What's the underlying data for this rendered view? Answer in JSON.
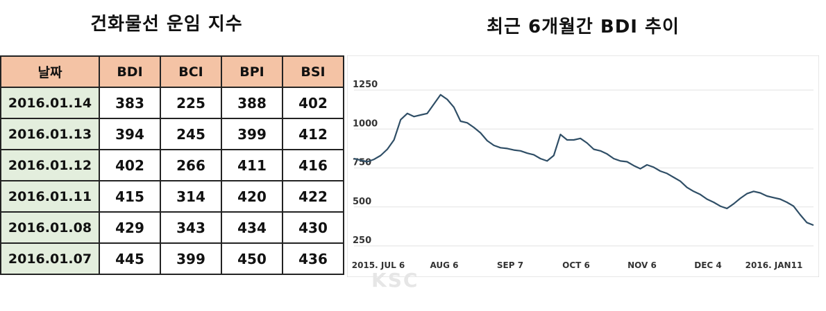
{
  "table_title": "건화물선 운임 지수",
  "chart_title": "최근 6개월간 BDI 추이",
  "table": {
    "headers": [
      "날짜",
      "BDI",
      "BCI",
      "BPI",
      "BSI"
    ],
    "rows": [
      [
        "2016.01.14",
        "383",
        "225",
        "388",
        "402"
      ],
      [
        "2016.01.13",
        "394",
        "245",
        "399",
        "412"
      ],
      [
        "2016.01.12",
        "402",
        "266",
        "411",
        "416"
      ],
      [
        "2016.01.11",
        "415",
        "314",
        "420",
        "422"
      ],
      [
        "2016.01.08",
        "429",
        "343",
        "434",
        "430"
      ],
      [
        "2016.01.07",
        "445",
        "399",
        "450",
        "436"
      ]
    ]
  },
  "watermark": "KSC",
  "colors": {
    "header_bg": "#f4c3a5",
    "date_bg": "#e3eedd",
    "line": "#2f4e66"
  },
  "chart_data": {
    "type": "line",
    "title": "최근 6개월간 BDI 추이",
    "xlabel": "",
    "ylabel": "",
    "ylim": [
      250,
      1250
    ],
    "yticks": [
      1250,
      1000,
      750,
      500,
      250
    ],
    "xticks": [
      "2015. JUL 6",
      "AUG 6",
      "SEP 7",
      "OCT 6",
      "NOV 6",
      "DEC 4",
      "2016. JAN11"
    ],
    "grid": true,
    "series": [
      {
        "values": [
          810,
          800,
          790,
          805,
          830,
          870,
          930,
          1060,
          1100,
          1080,
          1090,
          1100,
          1160,
          1220,
          1190,
          1140,
          1050,
          1040,
          1010,
          975,
          925,
          895,
          880,
          875,
          865,
          860,
          845,
          835,
          810,
          795,
          830,
          965,
          930,
          930,
          940,
          910,
          870,
          860,
          840,
          810,
          795,
          790,
          765,
          745,
          770,
          755,
          730,
          715,
          690,
          665,
          625,
          600,
          580,
          550,
          530,
          505,
          490,
          520,
          555,
          585,
          600,
          590,
          570,
          560,
          550,
          530,
          505,
          450,
          400,
          383
        ]
      }
    ]
  }
}
